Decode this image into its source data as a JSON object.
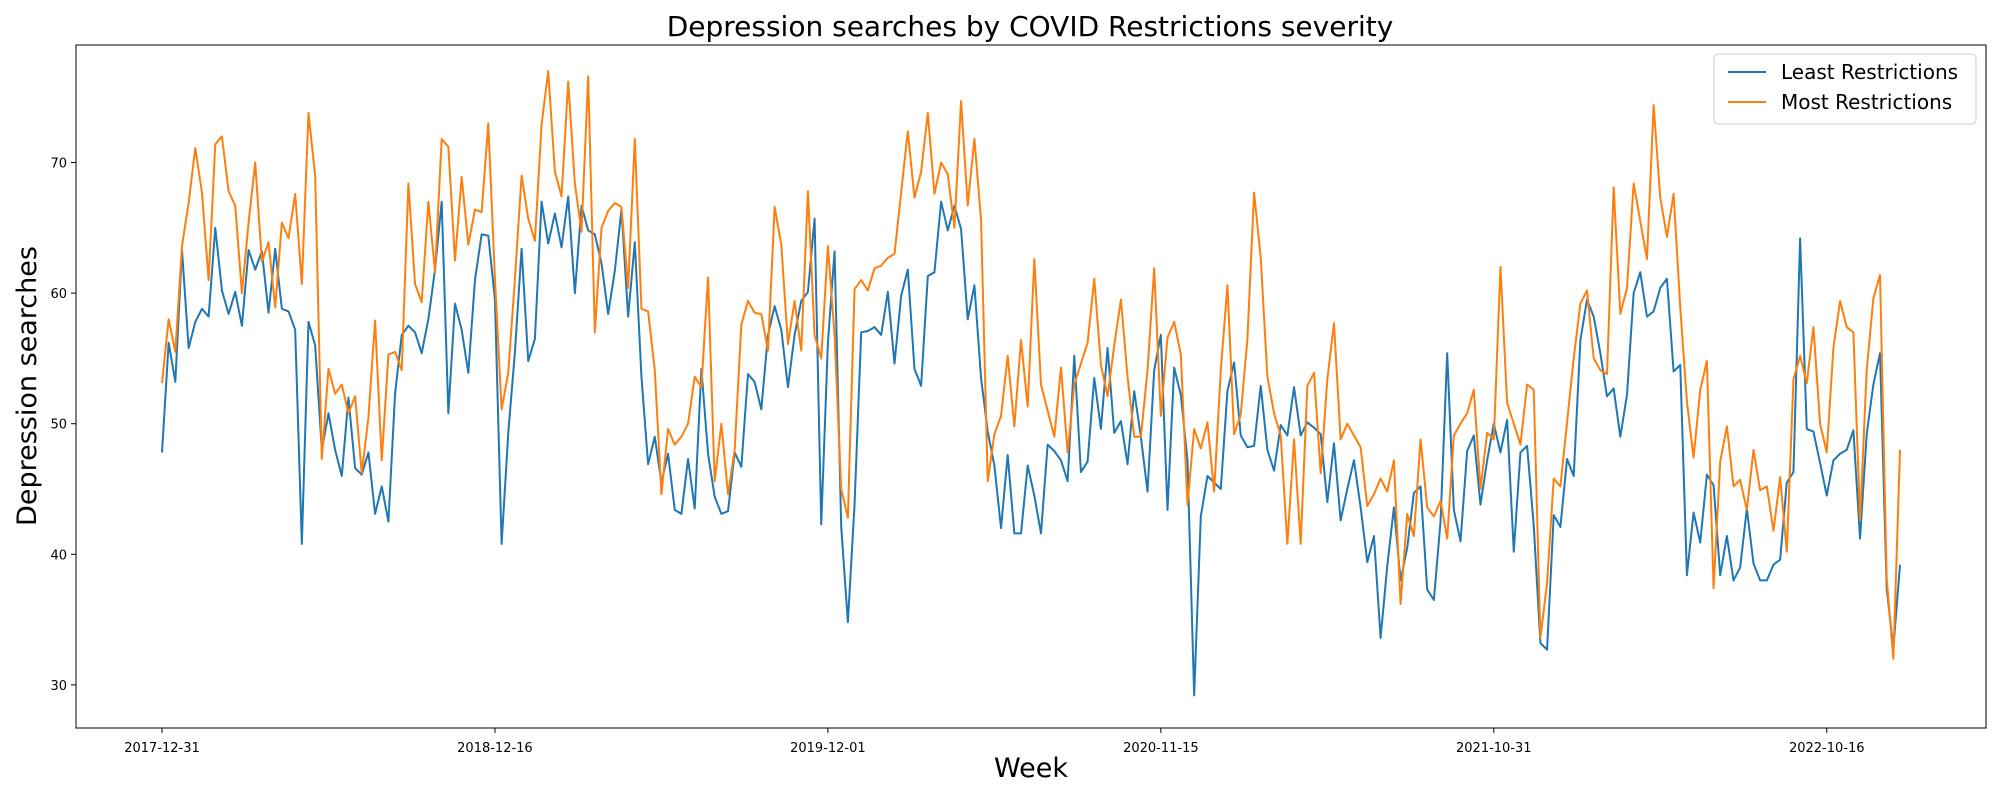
{
  "chart_data": {
    "type": "line",
    "title": "Depression searches by COVID Restrictions severity",
    "xlabel": "Week",
    "ylabel": "Depression searches",
    "x_start": "2017-12-31",
    "x_step_days": 7,
    "x_ticks": [
      "2017-12-31",
      "2018-12-16",
      "2019-12-01",
      "2020-11-15",
      "2021-10-31",
      "2022-10-16"
    ],
    "y_ticks": [
      30,
      40,
      50,
      60,
      70
    ],
    "ylim": [
      26.7,
      79
    ],
    "grid": false,
    "legend_placement": "top-right",
    "series": [
      {
        "name": "Least Restrictions",
        "color": "#1f77b4",
        "values": [
          47.8,
          56.2,
          53.2,
          63.3,
          55.8,
          57.8,
          58.8,
          58.2,
          65.0,
          60.2,
          58.4,
          60.1,
          57.5,
          63.3,
          61.8,
          63.2,
          58.5,
          63.4,
          58.8,
          58.6,
          57.2,
          40.8,
          57.8,
          56.0,
          48.0,
          50.8,
          48.0,
          46.0,
          52.0,
          46.6,
          46.1,
          47.8,
          43.1,
          45.2,
          42.5,
          52.3,
          56.8,
          57.5,
          57.0,
          55.4,
          58.0,
          61.8,
          67.0,
          50.8,
          59.2,
          57.2,
          53.9,
          61.0,
          64.5,
          64.4,
          59.5,
          40.8,
          49.3,
          55.5,
          63.4,
          54.8,
          56.5,
          67.0,
          63.8,
          66.1,
          63.5,
          67.4,
          60.0,
          66.7,
          64.8,
          64.5,
          62.3,
          58.4,
          61.7,
          66.4,
          58.2,
          63.9,
          53.6,
          46.9,
          49.0,
          45.5,
          47.7,
          43.4,
          43.1,
          47.3,
          43.5,
          54.2,
          47.7,
          44.4,
          43.1,
          43.3,
          47.8,
          46.7,
          53.8,
          53.2,
          51.1,
          56.8,
          59.0,
          57.2,
          52.8,
          56.8,
          59.4,
          60.1,
          65.7,
          42.3,
          56.2,
          63.2,
          42.1,
          34.8,
          43.8,
          57.0,
          57.1,
          57.4,
          56.8,
          60.1,
          54.6,
          59.8,
          61.8,
          54.2,
          52.9,
          61.3,
          61.6,
          67.0,
          64.8,
          66.7,
          64.9,
          58.0,
          60.6,
          53.5,
          49.4,
          46.8,
          42.0,
          47.6,
          41.6,
          41.6,
          46.8,
          44.5,
          41.6,
          48.4,
          47.9,
          47.2,
          45.6,
          55.2,
          46.3,
          47.1,
          53.5,
          49.6,
          55.8,
          49.3,
          50.2,
          46.9,
          52.5,
          49.0,
          44.8,
          54.1,
          56.8,
          43.4,
          54.3,
          52.2,
          47.2,
          29.2,
          42.9,
          46.0,
          45.5,
          45.0,
          52.5,
          54.7,
          49.1,
          48.2,
          48.3,
          52.9,
          48.0,
          46.4,
          49.9,
          49.1,
          52.8,
          49.1,
          50.1,
          49.7,
          49.2,
          44.0,
          48.5,
          42.6,
          45.0,
          47.2,
          43.6,
          39.4,
          41.4,
          33.6,
          39.1,
          43.6,
          38.0,
          40.5,
          44.7,
          45.2,
          37.3,
          36.5,
          42.5,
          55.4,
          43.4,
          41.0,
          47.9,
          49.1,
          43.8,
          47.2,
          50.0,
          47.8,
          50.3,
          40.2,
          47.8,
          48.3,
          42.2,
          33.2,
          32.7,
          43.0,
          42.1,
          47.3,
          46.0,
          56.4,
          59.5,
          58.2,
          55.4,
          52.1,
          52.7,
          49.0,
          52.2,
          60.0,
          61.6,
          58.2,
          58.6,
          60.4,
          61.1,
          54.0,
          54.5,
          38.4,
          43.2,
          40.9,
          46.1,
          45.3,
          38.4,
          41.4,
          38.0,
          39.0,
          43.5,
          39.3,
          38.0,
          38.0,
          39.2,
          39.6,
          45.5,
          46.3,
          64.2,
          49.6,
          49.4,
          47.0,
          44.5,
          47.2,
          47.7,
          48.0,
          49.5,
          41.2,
          49.2,
          53.0,
          55.4,
          37.4,
          32.8,
          39.2
        ]
      },
      {
        "name": "Most Restrictions",
        "color": "#ff7f0e",
        "values": [
          53.1,
          58.0,
          55.5,
          63.6,
          66.9,
          71.1,
          67.7,
          61.0,
          71.4,
          72.0,
          67.8,
          66.7,
          60.0,
          65.4,
          70.0,
          62.4,
          63.9,
          58.9,
          65.4,
          64.2,
          67.6,
          60.7,
          73.8,
          69.0,
          47.3,
          54.2,
          52.3,
          53.0,
          50.8,
          52.1,
          46.2,
          50.5,
          57.9,
          47.2,
          55.3,
          55.5,
          54.1,
          68.4,
          60.7,
          59.3,
          67.0,
          61.6,
          71.8,
          71.2,
          62.5,
          68.9,
          63.7,
          66.4,
          66.2,
          73.0,
          61.1,
          51.1,
          53.9,
          61.1,
          69.0,
          65.7,
          64.0,
          72.9,
          77.0,
          69.3,
          67.4,
          76.2,
          68.4,
          64.7,
          76.6,
          57.0,
          65.0,
          66.3,
          66.9,
          66.6,
          60.4,
          71.8,
          58.8,
          58.6,
          54.1,
          44.6,
          49.6,
          48.4,
          49.0,
          50.0,
          53.6,
          52.8,
          61.2,
          45.6,
          50.0,
          44.6,
          48.0,
          57.6,
          59.4,
          58.5,
          58.4,
          55.6,
          66.6,
          63.7,
          56.1,
          59.4,
          55.6,
          67.8,
          56.8,
          55.0,
          63.6,
          56.8,
          45.0,
          42.8,
          60.3,
          61.0,
          60.2,
          61.9,
          62.1,
          62.7,
          63.0,
          67.7,
          72.4,
          67.3,
          69.3,
          73.8,
          67.6,
          70.0,
          69.1,
          65.0,
          74.7,
          66.7,
          71.8,
          65.6,
          45.6,
          49.2,
          50.6,
          55.2,
          49.8,
          56.4,
          51.3,
          62.6,
          53.0,
          51.0,
          49.0,
          54.3,
          47.8,
          53.0,
          54.6,
          56.2,
          61.1,
          54.5,
          52.1,
          56.0,
          59.5,
          53.6,
          49.0,
          49.0,
          54.1,
          61.9,
          50.6,
          56.6,
          57.8,
          55.3,
          43.8,
          49.6,
          48.1,
          50.1,
          44.8,
          54.1,
          60.6,
          49.2,
          50.7,
          56.5,
          67.7,
          62.7,
          53.6,
          50.8,
          49.1,
          40.8,
          48.8,
          40.8,
          52.9,
          53.9,
          46.2,
          53.4,
          57.7,
          48.8,
          50.0,
          49.1,
          48.2,
          43.7,
          44.6,
          45.8,
          44.8,
          47.2,
          36.2,
          43.1,
          41.4,
          48.8,
          43.6,
          42.9,
          44.1,
          41.2,
          49.1,
          50.0,
          50.8,
          52.6,
          45.0,
          49.3,
          48.8,
          62.0,
          51.6,
          50.0,
          48.4,
          53.0,
          52.6,
          33.6,
          37.8,
          45.8,
          45.2,
          50.1,
          55.0,
          59.2,
          60.2,
          55.0,
          54.1,
          53.8,
          68.1,
          58.4,
          60.4,
          68.4,
          65.5,
          62.6,
          74.4,
          67.3,
          64.3,
          67.6,
          58.9,
          51.7,
          47.4,
          52.6,
          54.8,
          37.4,
          47.1,
          49.8,
          45.2,
          45.7,
          43.4,
          48.0,
          44.9,
          45.2,
          41.8,
          45.9,
          40.2,
          53.4,
          55.2,
          53.1,
          57.4,
          50.0,
          47.8,
          55.8,
          59.4,
          57.4,
          57.0,
          42.6,
          54.1,
          59.6,
          61.4,
          38.2,
          32.0,
          48.0
        ]
      }
    ]
  }
}
